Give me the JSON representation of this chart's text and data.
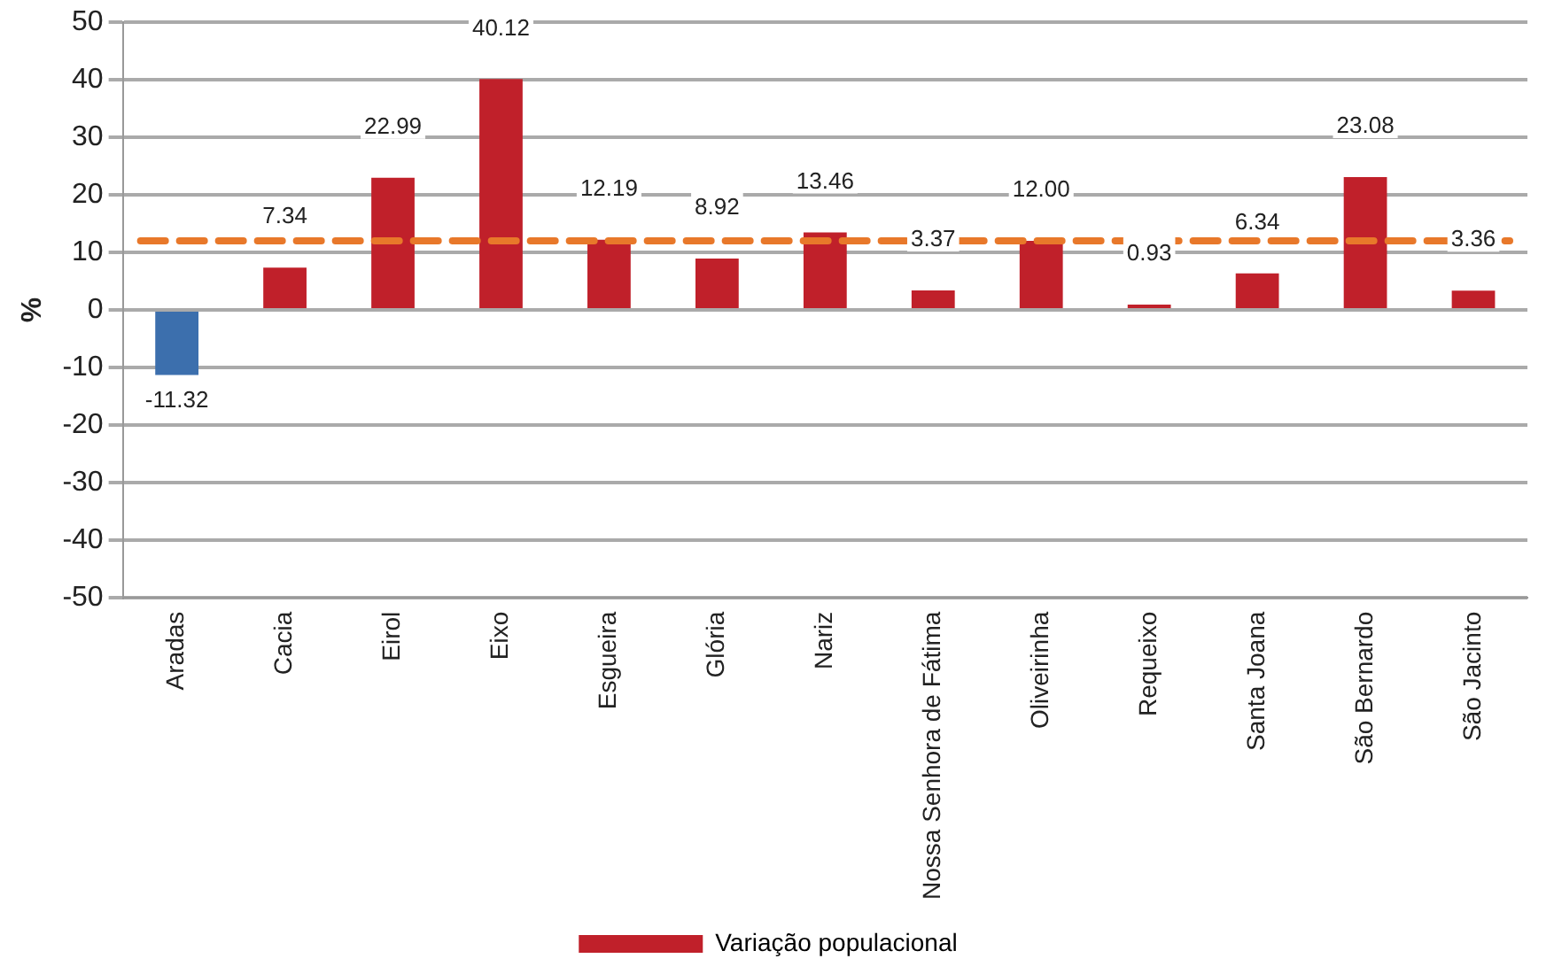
{
  "chart_data": {
    "type": "bar",
    "ylabel": "%",
    "categories": [
      "Aradas",
      "Cacia",
      "Eirol",
      "Eixo",
      "Esgueira",
      "Glória",
      "Nariz",
      "Nossa Senhora de Fátima",
      "Oliveirinha",
      "Requeixo",
      "Santa Joana",
      "São Bernardo",
      "São Jacinto"
    ],
    "series": [
      {
        "name": "Variação populacional",
        "color": "#c0202a",
        "colors": [
          "#3c6fad",
          "#c0202a",
          "#c0202a",
          "#c0202a",
          "#c0202a",
          "#c0202a",
          "#c0202a",
          "#c0202a",
          "#c0202a",
          "#c0202a",
          "#c0202a",
          "#c0202a",
          "#c0202a"
        ],
        "values": [
          -11.32,
          7.34,
          22.99,
          40.12,
          12.19,
          8.92,
          13.46,
          3.37,
          12.0,
          0.93,
          6.34,
          23.08,
          3.36
        ],
        "value_labels": [
          "-11.32",
          "7.34",
          "22.99",
          "40.12",
          "12.19",
          "8.92",
          "13.46",
          "3.37",
          "12.00",
          "0.93",
          "6.34",
          "23.08",
          "3.36"
        ]
      }
    ],
    "ylim": [
      -50,
      50
    ],
    "yticks": [
      -50,
      -40,
      -30,
      -20,
      -10,
      0,
      10,
      20,
      30,
      40,
      50
    ],
    "ref_lines": [
      {
        "axis": "y",
        "value": 12,
        "color": "#e8782a",
        "line_style": "dashed"
      }
    ],
    "grid": "y",
    "legend": "bottom"
  }
}
